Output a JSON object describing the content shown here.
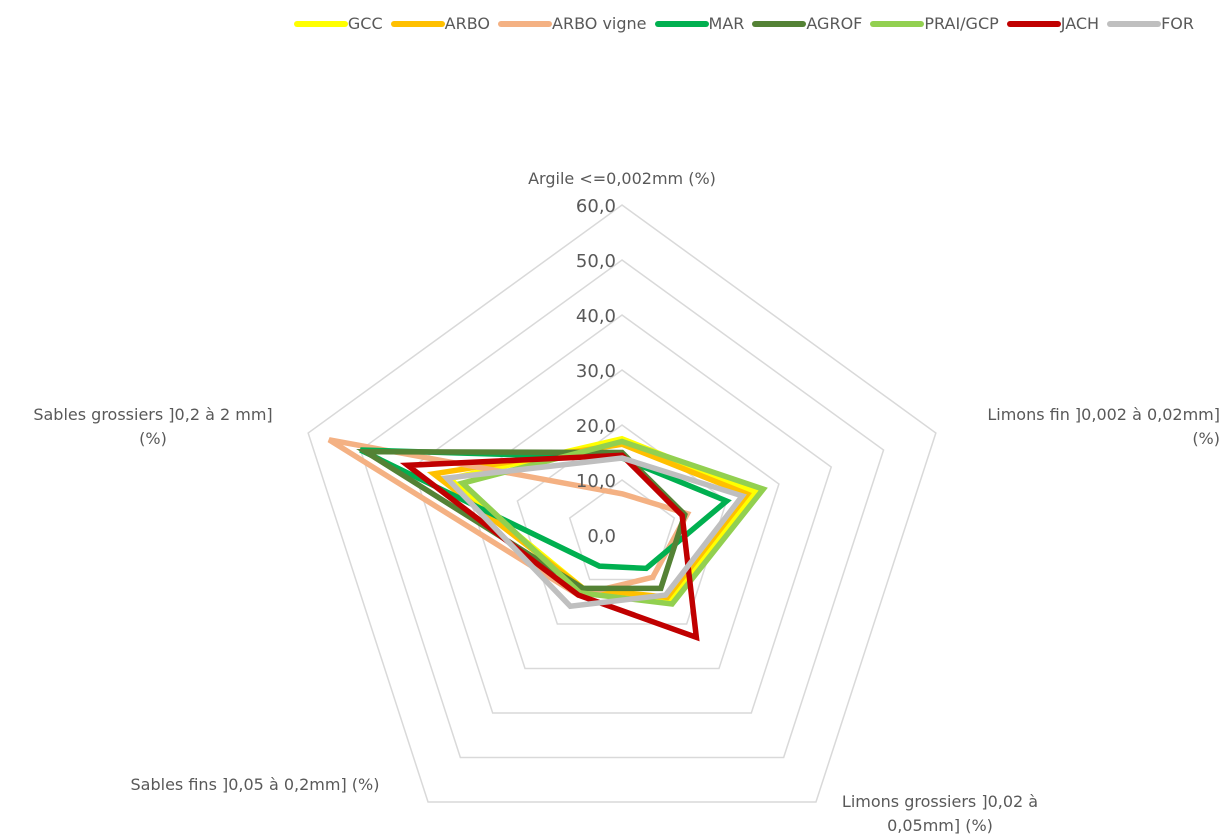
{
  "chart_data": {
    "type": "radar",
    "axes": [
      [
        "Argile <=0,002mm (%)"
      ],
      [
        "Limons fin ]0,002 à 0,02mm]",
        "(%)"
      ],
      [
        "Limons grossiers ]0,02 à",
        "0,05mm] (%)"
      ],
      [
        "Sables fins ]0,05 à 0,2mm] (%)"
      ],
      [
        "Sables grossiers ]0,2 à 2 mm]",
        "(%)"
      ]
    ],
    "ticks": [
      "0,0",
      "10,0",
      "20,0",
      "30,0",
      "40,0",
      "50,0",
      "60,0"
    ],
    "range": [
      0,
      60
    ],
    "grid": true,
    "legend_position": "top-right",
    "series": [
      {
        "name": "GCC",
        "color": "#FFFF00",
        "values": [
          17.5,
          25.5,
          14.5,
          12.0,
          33.0
        ]
      },
      {
        "name": "ARBO",
        "color": "#FFC000",
        "values": [
          16.5,
          24.0,
          14.0,
          12.0,
          36.0
        ]
      },
      {
        "name": "ARBO vigne",
        "color": "#F4B183",
        "values": [
          7.5,
          12.5,
          9.5,
          13.5,
          56.0
        ]
      },
      {
        "name": "MAR",
        "color": "#00B050",
        "values": [
          14.0,
          20.0,
          7.5,
          7.0,
          50.0
        ]
      },
      {
        "name": "AGROF",
        "color": "#548235",
        "values": [
          15.0,
          12.0,
          12.0,
          12.0,
          49.0
        ]
      },
      {
        "name": "PRAI/GCP",
        "color": "#92D050",
        "values": [
          17.0,
          27.0,
          15.5,
          13.0,
          30.5
        ]
      },
      {
        "name": "JACH",
        "color": "#C00000",
        "values": [
          14.5,
          11.5,
          23.0,
          13.5,
          41.0
        ]
      },
      {
        "name": "FOR",
        "color": "#BFBFBF",
        "values": [
          14.0,
          23.0,
          13.5,
          16.0,
          33.5
        ]
      }
    ]
  }
}
